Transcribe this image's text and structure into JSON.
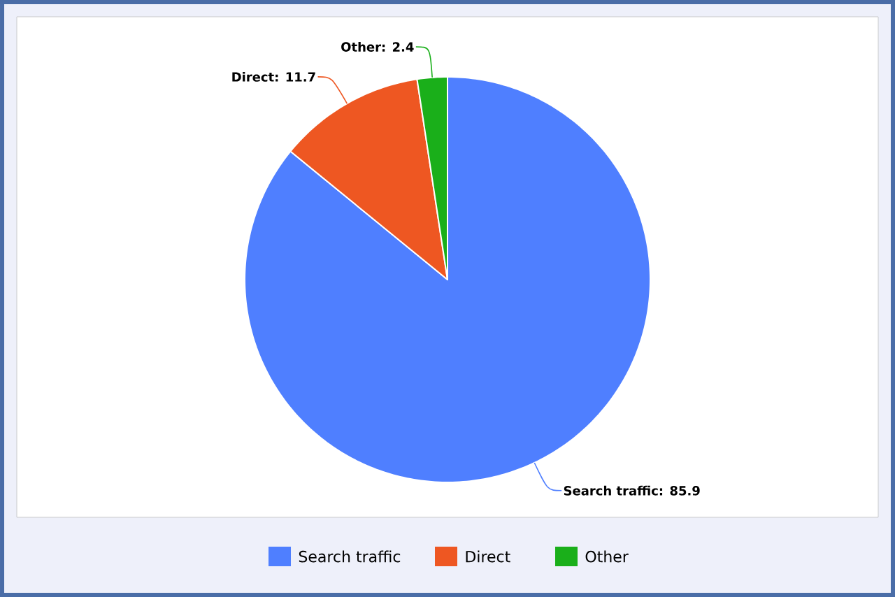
{
  "chart_data": {
    "type": "pie",
    "categories": [
      "Search traffic",
      "Direct",
      "Other"
    ],
    "values": [
      85.9,
      11.7,
      2.4
    ],
    "colors": [
      "#4f7fff",
      "#ee5722",
      "#1aaf1a"
    ],
    "value_labels": [
      "Search traffic: 85.9",
      "Direct: 11.7",
      "Other: 2.4"
    ],
    "legend": "bottom"
  }
}
